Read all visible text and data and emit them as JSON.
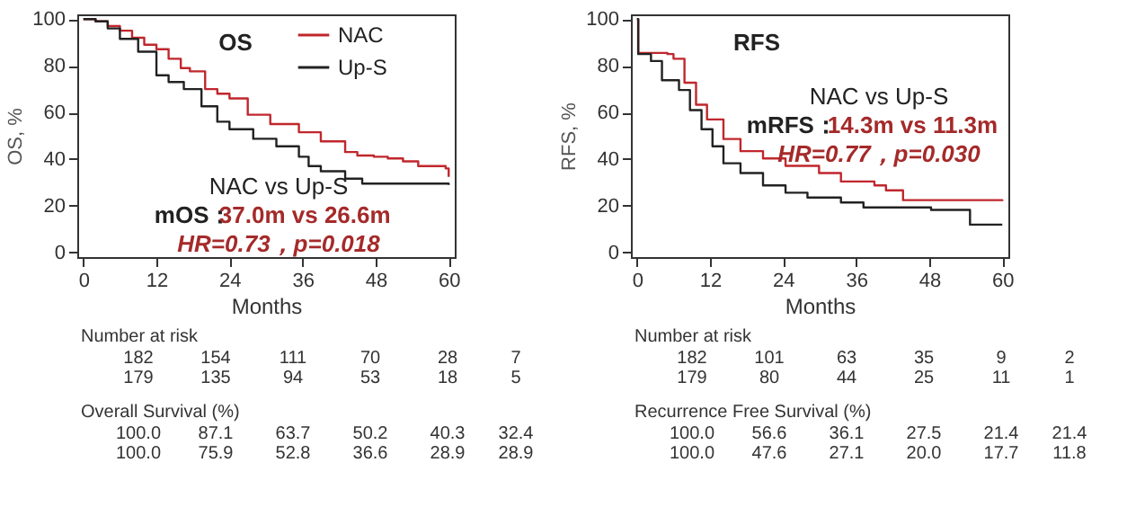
{
  "chart_data": [
    {
      "type": "step",
      "title": "OS",
      "xlabel": "Months",
      "ylabel": "OS, %",
      "xlim": [
        -1,
        61
      ],
      "ylim": [
        -2,
        102
      ],
      "xticks": [
        0,
        12,
        24,
        36,
        48,
        60
      ],
      "yticks": [
        0,
        20,
        40,
        60,
        80,
        100
      ],
      "legend": "top",
      "series": [
        {
          "name": "NAC",
          "color": "#c0272d",
          "x": [
            0,
            2,
            4,
            6,
            8,
            10,
            12,
            14,
            16,
            17.5,
            20,
            22,
            24,
            27,
            30.7,
            35.4,
            39,
            43,
            45,
            47.7,
            50,
            52.5,
            55,
            59.5,
            60
          ],
          "values": [
            100,
            99,
            97,
            95,
            92,
            89,
            87.1,
            83,
            79,
            77.6,
            70,
            68,
            66,
            59,
            55,
            51.5,
            47.6,
            43,
            41.5,
            41,
            40.3,
            39,
            37,
            36,
            32.4
          ]
        },
        {
          "name": "Up-S",
          "color": "#222222",
          "x": [
            0,
            2,
            4,
            6,
            9,
            12,
            14,
            16.5,
            19.4,
            22,
            24,
            27.9,
            31.7,
            35.4,
            37,
            39,
            43,
            45.8,
            60
          ],
          "values": [
            100,
            99,
            96,
            91.5,
            86,
            75.9,
            73,
            70,
            62.6,
            56,
            52.8,
            48.7,
            45.5,
            41,
            37,
            34.8,
            31.6,
            29.5,
            28.9
          ]
        }
      ],
      "annotations": [
        "NAC vs Up-S",
        "mOS：",
        "37.0m vs 26.6m",
        "HR=0.73，p=0.018",
        "Number at risk",
        "182",
        "154",
        "111",
        "70",
        "28",
        "7",
        "179",
        "135",
        "94",
        "53",
        "18",
        "5",
        "Overall Survival (%)",
        "100.0",
        "87.1",
        "63.7",
        "50.2",
        "40.3",
        "32.4",
        "100.0",
        "75.9",
        "52.8",
        "36.6",
        "28.9",
        "28.9"
      ]
    },
    {
      "type": "step",
      "title": "RFS",
      "xlabel": "Months",
      "ylabel": "RFS, %",
      "xlim": [
        -1,
        61
      ],
      "ylim": [
        -2,
        102
      ],
      "xticks": [
        0,
        12,
        24,
        36,
        48,
        60
      ],
      "yticks": [
        0,
        20,
        40,
        60,
        80,
        100
      ],
      "legend": "top",
      "series": [
        {
          "name": "NAC",
          "color": "#c0272d",
          "x": [
            0,
            0.2,
            5,
            6,
            7.8,
            9.7,
            11.5,
            14.2,
            17,
            20.7,
            24.4,
            29.9,
            33.5,
            39,
            40.9,
            43.7,
            60
          ],
          "values": [
            100,
            85.5,
            85,
            83,
            72.7,
            63.3,
            57,
            48.6,
            43.4,
            40.3,
            37.1,
            34,
            30.4,
            28.7,
            26.6,
            22.4,
            22
          ]
        },
        {
          "name": "Up-S",
          "color": "#222222",
          "x": [
            0,
            0.2,
            2.3,
            4.1,
            6.9,
            8.7,
            10.6,
            12.4,
            14.2,
            17,
            20.7,
            24.4,
            28,
            33.5,
            37.2,
            48.3,
            54.7,
            60
          ],
          "values": [
            100,
            85,
            82,
            73.8,
            69.6,
            61,
            52.8,
            45.5,
            38.2,
            34,
            28.7,
            25.6,
            23.5,
            21.4,
            19.3,
            18.2,
            11.9,
            11.9
          ]
        }
      ],
      "annotations": [
        "NAC vs Up-S",
        "mRFS：",
        "14.3m vs 11.3m",
        "HR=0.77，p=0.030",
        "Number at risk",
        "182",
        "101",
        "63",
        "35",
        "9",
        "2",
        "179",
        "80",
        "44",
        "25",
        "11",
        "1",
        "Recurrence Free Survival (%)",
        "100.0",
        "56.6",
        "36.1",
        "27.5",
        "21.4",
        "21.4",
        "100.0",
        "47.6",
        "27.1",
        "20.0",
        "17.7",
        "11.8"
      ]
    }
  ]
}
